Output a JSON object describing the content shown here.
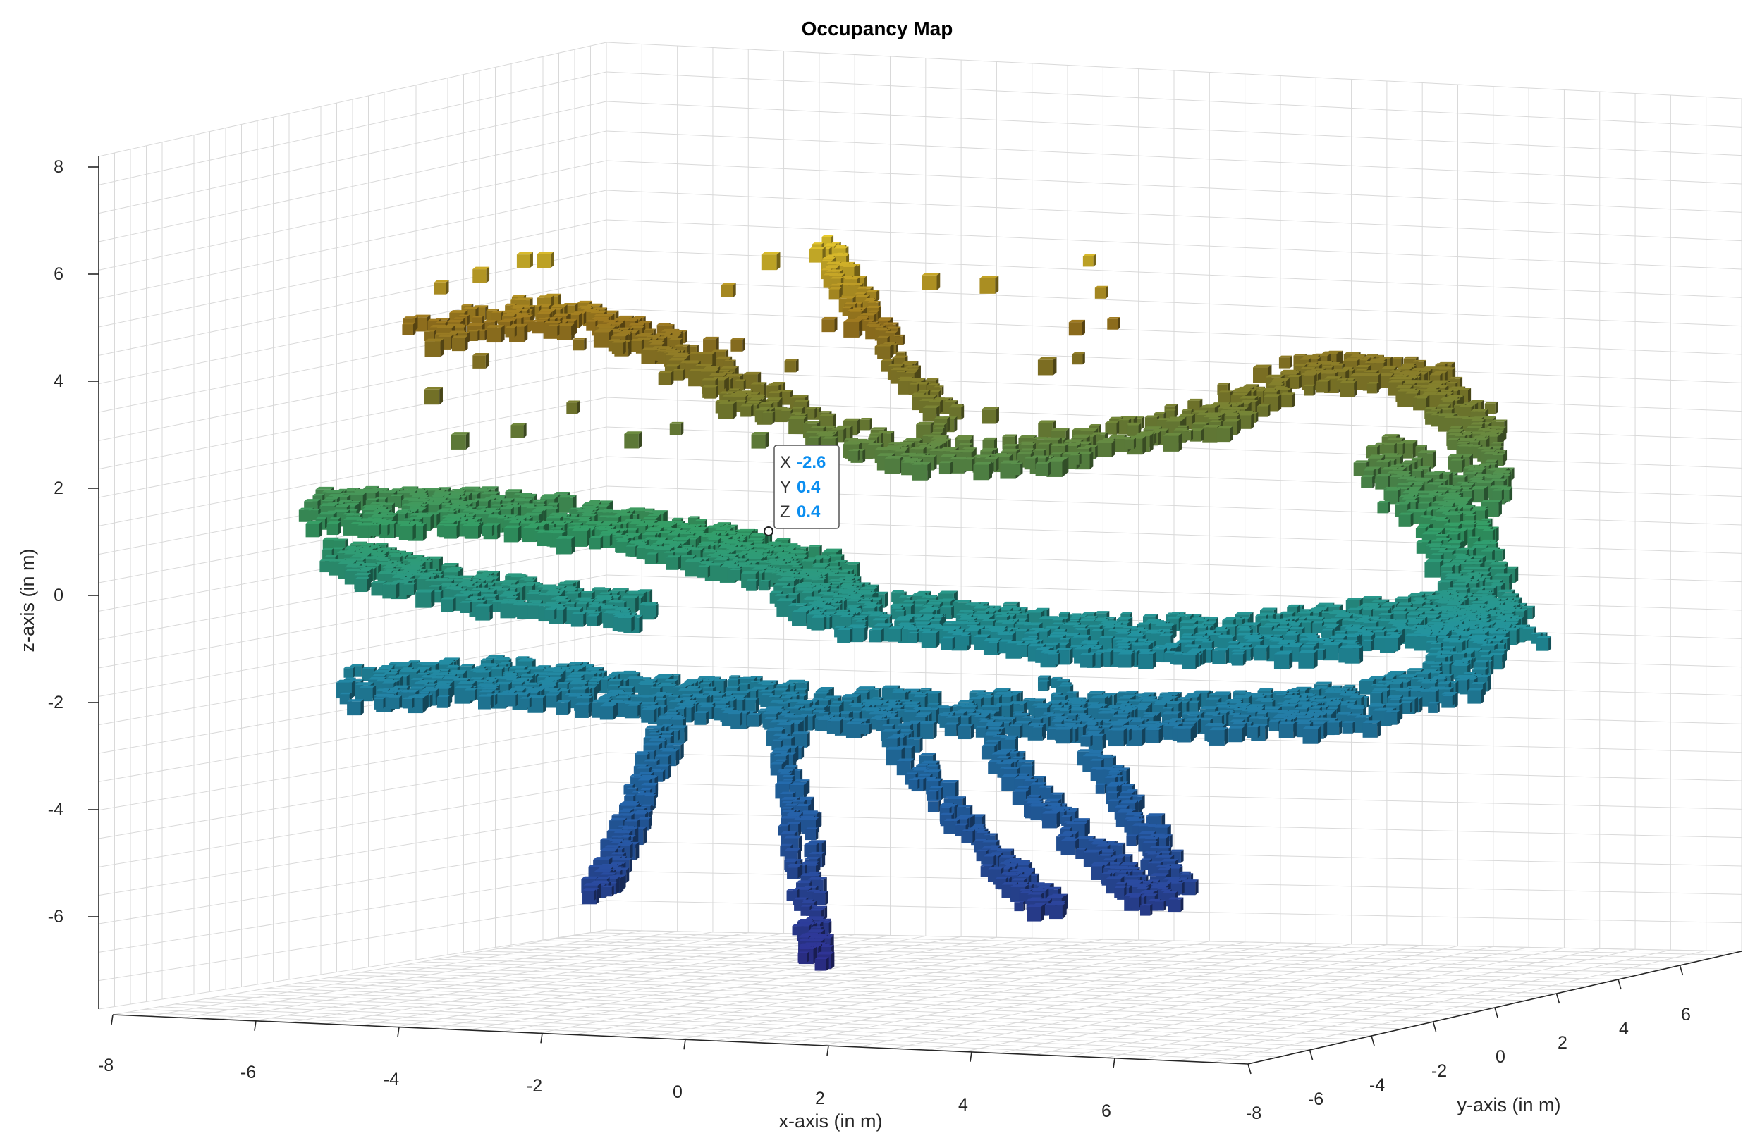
{
  "chart_data": {
    "type": "3d-voxel",
    "title": "Occupancy Map",
    "xlabel": "x-axis (in m)",
    "ylabel": "y-axis (in m)",
    "zlabel": "z-axis (in m)",
    "xlim": [
      -8,
      8
    ],
    "ylim": [
      -8,
      8
    ],
    "zlim": [
      -7,
      8
    ],
    "x_ticks": [
      "-8",
      "-6",
      "-4",
      "-2",
      "0",
      "2",
      "4",
      "6"
    ],
    "y_ticks": [
      "-8",
      "-6",
      "-4",
      "-2",
      "0",
      "2",
      "4",
      "6"
    ],
    "z_ticks": [
      "8",
      "6",
      "4",
      "2",
      "0",
      "-2",
      "-4",
      "-6"
    ],
    "grid": true,
    "colormap": "parula (height-based)",
    "colors": {
      "top": "#c9b322",
      "upper": "#8a6a1c",
      "mid": "#2f8a5a",
      "lower": "#1f7d92",
      "bottom": "#2a2880"
    },
    "datatip": {
      "x_key": "X",
      "x_value": "-2.6",
      "y_key": "Y",
      "y_value": "0.4",
      "z_key": "Z",
      "z_value": "0.4"
    }
  }
}
